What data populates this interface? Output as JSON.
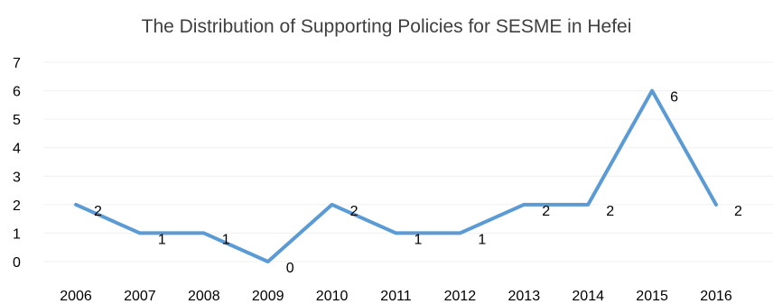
{
  "chart_data": {
    "type": "line",
    "title": "The Distribution of Supporting Policies for SESME in Hefei",
    "xlabel": "",
    "ylabel": "",
    "categories": [
      "2006",
      "2007",
      "2008",
      "2009",
      "2010",
      "2011",
      "2012",
      "2013",
      "2014",
      "2015",
      "2016"
    ],
    "series": [
      {
        "values": [
          2,
          1,
          1,
          0,
          2,
          1,
          1,
          2,
          2,
          6,
          2
        ]
      }
    ],
    "ylim": [
      0,
      7
    ],
    "yticks": [
      "0",
      "1",
      "2",
      "3",
      "4",
      "5",
      "6",
      "7"
    ],
    "grid": true,
    "legend": "none",
    "data_labels": true,
    "colors": {
      "line": "#5b9bd5",
      "grid": "#f0f0f0"
    }
  }
}
